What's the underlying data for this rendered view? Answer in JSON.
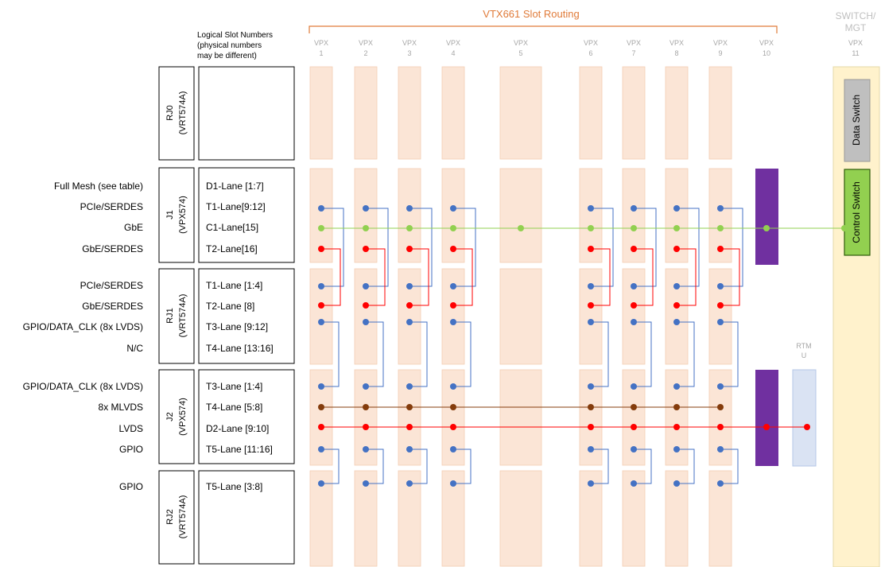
{
  "header": {
    "title": "VTX661 Slot Routing",
    "switch_label_line1": "SWITCH/",
    "switch_label_line2": "MGT"
  },
  "logical_slot_header": [
    "Logical Slot Numbers",
    "(physical numbers",
    "may be different)"
  ],
  "slots": [
    {
      "prefix": "VPX",
      "num": "1"
    },
    {
      "prefix": "VPX",
      "num": "2"
    },
    {
      "prefix": "VPX",
      "num": "3"
    },
    {
      "prefix": "VPX",
      "num": "4"
    },
    {
      "prefix": "VPX",
      "num": "5"
    },
    {
      "prefix": "VPX",
      "num": "6"
    },
    {
      "prefix": "VPX",
      "num": "7"
    },
    {
      "prefix": "VPX",
      "num": "8"
    },
    {
      "prefix": "VPX",
      "num": "9"
    },
    {
      "prefix": "VPX",
      "num": "10"
    },
    {
      "prefix": "VPX",
      "num": "11"
    }
  ],
  "rtm_label": [
    "RTM",
    "U"
  ],
  "connectors": [
    {
      "line1": "RJ0",
      "line2": "(VRT574A)"
    },
    {
      "line1": "J1",
      "line2": "(VPX574)"
    },
    {
      "line1": "RJ1",
      "line2": "(VRT574A)"
    },
    {
      "line1": "J2",
      "line2": "(VPX574)"
    },
    {
      "line1": "RJ2",
      "line2": "(VRT574A)"
    }
  ],
  "signals": [
    {
      "label": "Full Mesh (see table)",
      "lane": "D1-Lane [1:7]"
    },
    {
      "label": "PCIe/SERDES",
      "lane": "T1-Lane[9:12]"
    },
    {
      "label": "GbE",
      "lane": "C1-Lane[15]"
    },
    {
      "label": "GbE/SERDES",
      "lane": "T2-Lane[16]"
    },
    {
      "label": "PCIe/SERDES",
      "lane": "T1-Lane [1:4]"
    },
    {
      "label": "GbE/SERDES",
      "lane": "T2-Lane [8]"
    },
    {
      "label": "GPIO/DATA_CLK (8x LVDS)",
      "lane": "T3-Lane [9:12]"
    },
    {
      "label": "N/C",
      "lane": "T4-Lane [13:16]"
    },
    {
      "label": "GPIO/DATA_CLK (8x LVDS)",
      "lane": "T3-Lane [1:4]"
    },
    {
      "label": "8x MLVDS",
      "lane": "T4-Lane [5:8]"
    },
    {
      "label": "LVDS",
      "lane": "D2-Lane [9:10]"
    },
    {
      "label": "GPIO",
      "lane": "T5-Lane [11:16]"
    },
    {
      "label": "GPIO",
      "lane": "T5-Lane [3:8]"
    }
  ],
  "switches": {
    "data": "Data Switch",
    "control": "Control Switch"
  },
  "colors": {
    "accent_orange": "#e07b39",
    "slot_fill": "#fbe5d6",
    "switch_panel": "#fff2cc",
    "data_switch": "#bfbfbf",
    "control_switch": "#92d050",
    "purple_block": "#7030a0",
    "rtm_block": "#dae3f3",
    "blue_dot": "#4472c4",
    "green_dot": "#92d050",
    "red_dot": "#ff0000",
    "brown_dot": "#843c0c"
  }
}
